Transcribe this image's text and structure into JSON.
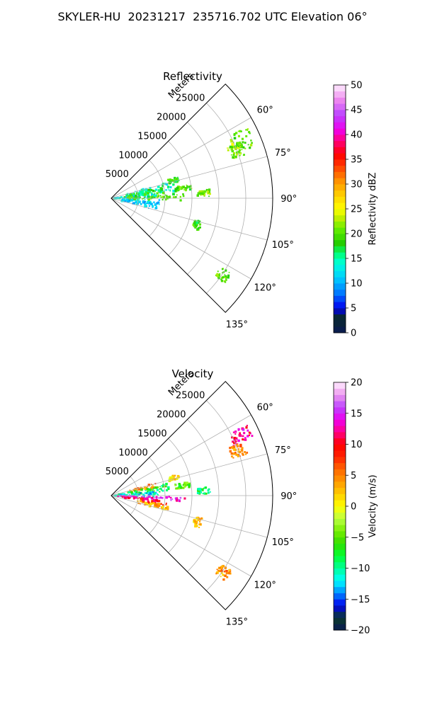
{
  "suptitle": "SKYLER-HU  20231217  235716.702 UTC Elevation 06°",
  "chart_data": [
    {
      "type": "heatmap",
      "title": "Reflectivity",
      "projection": "polar sector (azimuth 45°–135°, 0 at north, clockwise)",
      "radial_label": "Meters",
      "r_ticks": [
        5000,
        10000,
        15000,
        20000,
        25000
      ],
      "r_tick_labels": [
        "5000",
        "10000",
        "15000",
        "20000",
        "25000"
      ],
      "rlim": [
        0,
        30000
      ],
      "theta_ticks": [
        60,
        75,
        90,
        105,
        120,
        135
      ],
      "theta_tick_labels": [
        "60°",
        "75°",
        "90°",
        "105°",
        "120°",
        "135°"
      ],
      "grid": true,
      "colorbar": {
        "label": "Reflectivity dBZ",
        "vmin": 0,
        "vmax": 50,
        "ticks": [
          0,
          5,
          10,
          15,
          20,
          25,
          30,
          35,
          40,
          45,
          50
        ],
        "tick_labels": [
          "0",
          "5",
          "10",
          "15",
          "20",
          "25",
          "30",
          "35",
          "40",
          "45",
          "50"
        ],
        "stops": [
          [
            0,
            "#0a1a55"
          ],
          [
            3,
            "#0a2a2a"
          ],
          [
            5,
            "#0000ee"
          ],
          [
            8,
            "#0077ff"
          ],
          [
            11,
            "#00ccff"
          ],
          [
            14,
            "#00ffdd"
          ],
          [
            16,
            "#00ff77"
          ],
          [
            18,
            "#22cc00"
          ],
          [
            21,
            "#66ee00"
          ],
          [
            23,
            "#bbee00"
          ],
          [
            25,
            "#ffff00"
          ],
          [
            28,
            "#ffcc00"
          ],
          [
            31,
            "#ff8800"
          ],
          [
            34,
            "#ff3300"
          ],
          [
            36,
            "#ff0000"
          ],
          [
            39,
            "#ff0088"
          ],
          [
            41,
            "#ee00ee"
          ],
          [
            44,
            "#bb44ff"
          ],
          [
            47,
            "#ee88ee"
          ],
          [
            50,
            "#ffeeff"
          ]
        ]
      },
      "echo_regions": [
        {
          "az": [
            62,
            70
          ],
          "r": [
            24500,
            28500
          ],
          "value": 20
        },
        {
          "az": [
            66,
            72
          ],
          "r": [
            23500,
            26000
          ],
          "value": 22
        },
        {
          "az": [
            74,
            84
          ],
          "r": [
            3000,
            12000
          ],
          "value": 14
        },
        {
          "az": [
            78,
            88
          ],
          "r": [
            2000,
            10000
          ],
          "value": 18
        },
        {
          "az": [
            84,
            95
          ],
          "r": [
            500,
            9000
          ],
          "value": 13
        },
        {
          "az": [
            86,
            92
          ],
          "r": [
            3000,
            14000
          ],
          "value": 20
        },
        {
          "az": [
            95,
            105
          ],
          "r": [
            2000,
            9000
          ],
          "value": 11
        },
        {
          "az": [
            80,
            84
          ],
          "r": [
            12000,
            15000
          ],
          "value": 20
        },
        {
          "az": [
            85,
            89
          ],
          "r": [
            16000,
            18500
          ],
          "value": 21
        },
        {
          "az": [
            72,
            76
          ],
          "r": [
            11000,
            13000
          ],
          "value": 19
        },
        {
          "az": [
            104,
            110
          ],
          "r": [
            16000,
            17500
          ],
          "value": 19
        },
        {
          "az": [
            122,
            127
          ],
          "r": [
            24000,
            26500
          ],
          "value": 20
        }
      ]
    },
    {
      "type": "heatmap",
      "title": "Velocity",
      "projection": "polar sector (azimuth 45°–135°, 0 at north, clockwise)",
      "radial_label": "Meters",
      "r_ticks": [
        5000,
        10000,
        15000,
        20000,
        25000
      ],
      "r_tick_labels": [
        "5000",
        "10000",
        "15000",
        "20000",
        "25000"
      ],
      "rlim": [
        0,
        30000
      ],
      "theta_ticks": [
        60,
        75,
        90,
        105,
        120,
        135
      ],
      "theta_tick_labels": [
        "60°",
        "75°",
        "90°",
        "105°",
        "120°",
        "135°"
      ],
      "grid": true,
      "colorbar": {
        "label": "Velocity (m/s)",
        "vmin": -20,
        "vmax": 20,
        "ticks": [
          -20,
          -15,
          -10,
          -5,
          0,
          5,
          10,
          15,
          20
        ],
        "tick_labels": [
          "−20",
          "−15",
          "−10",
          "−5",
          "0",
          "5",
          "10",
          "15",
          "20"
        ],
        "stops": [
          [
            -20,
            "#0a1a55"
          ],
          [
            -18,
            "#0a3a2a"
          ],
          [
            -16,
            "#0000ee"
          ],
          [
            -14,
            "#0088ff"
          ],
          [
            -12,
            "#00ffff"
          ],
          [
            -10,
            "#00ff99"
          ],
          [
            -8,
            "#00ff33"
          ],
          [
            -6,
            "#33dd00"
          ],
          [
            -4,
            "#77ee00"
          ],
          [
            -2,
            "#bbff44"
          ],
          [
            0,
            "#ffff00"
          ],
          [
            2,
            "#ffcc00"
          ],
          [
            4,
            "#ff9900"
          ],
          [
            6,
            "#ff6600"
          ],
          [
            8,
            "#ff2200"
          ],
          [
            10,
            "#ff0000"
          ],
          [
            12,
            "#ff0088"
          ],
          [
            14,
            "#ee00ee"
          ],
          [
            16,
            "#bb44ff"
          ],
          [
            18,
            "#ee99ee"
          ],
          [
            20,
            "#ffeeff"
          ]
        ]
      },
      "echo_regions": [
        {
          "az": [
            62,
            68
          ],
          "r": [
            24500,
            28500
          ],
          "value": 12
        },
        {
          "az": [
            68,
            73
          ],
          "r": [
            23500,
            26500
          ],
          "value": 5
        },
        {
          "az": [
            74,
            80
          ],
          "r": [
            3000,
            10000
          ],
          "value": 5
        },
        {
          "az": [
            78,
            86
          ],
          "r": [
            1500,
            11000
          ],
          "value": -8
        },
        {
          "az": [
            84,
            91
          ],
          "r": [
            500,
            9000
          ],
          "value": -12
        },
        {
          "az": [
            91,
            95
          ],
          "r": [
            1000,
            14000
          ],
          "value": 14
        },
        {
          "az": [
            95,
            101
          ],
          "r": [
            2000,
            11000
          ],
          "value": 10
        },
        {
          "az": [
            100,
            106
          ],
          "r": [
            5000,
            11000
          ],
          "value": 3
        },
        {
          "az": [
            80,
            84
          ],
          "r": [
            12000,
            15000
          ],
          "value": -5
        },
        {
          "az": [
            85,
            89
          ],
          "r": [
            16000,
            18500
          ],
          "value": -8
        },
        {
          "az": [
            72,
            76
          ],
          "r": [
            11000,
            13000
          ],
          "value": 1
        },
        {
          "az": [
            104,
            110
          ],
          "r": [
            16000,
            17500
          ],
          "value": 2
        },
        {
          "az": [
            122,
            127
          ],
          "r": [
            24000,
            26500
          ],
          "value": 4
        }
      ]
    }
  ]
}
